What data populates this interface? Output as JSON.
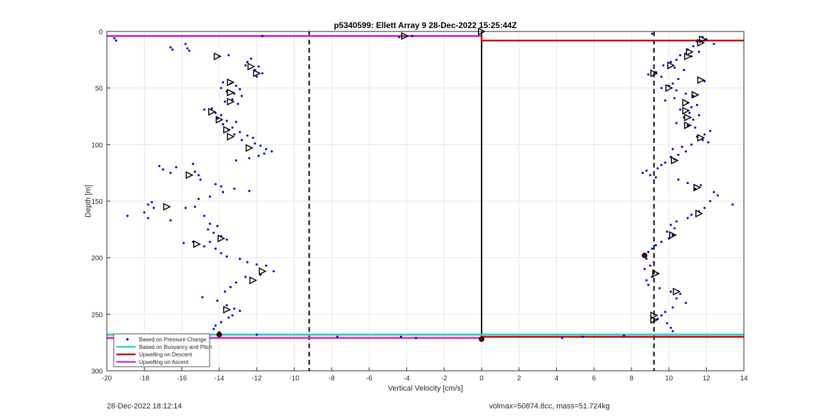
{
  "chart_data": {
    "type": "scatter",
    "title": "p5340599: Ellett Array 9 28-Dec-2022 15:25:44Z",
    "xlabel": "Vertical Velocity [cm/s]",
    "ylabel": "Depth [m]",
    "xlim": [
      -20,
      14
    ],
    "ylim": [
      0,
      300
    ],
    "y_reversed": true,
    "grid": true,
    "xticks": [
      -20,
      -18,
      -16,
      -14,
      -12,
      -10,
      -8,
      -6,
      -4,
      -2,
      0,
      2,
      4,
      6,
      8,
      10,
      12,
      14
    ],
    "yticks": [
      0,
      50,
      100,
      150,
      200,
      250,
      300
    ],
    "legend_position": "bottom-left",
    "legend": [
      {
        "label": "Based on Pressure Change",
        "color": "#0000cc",
        "style": "dot"
      },
      {
        "label": "Based on Buoyancy and Pitch",
        "color": "#33cccc",
        "style": "line"
      },
      {
        "label": "Upwelling on Descent",
        "color": "#cc0000",
        "style": "line"
      },
      {
        "label": "Upwelling on Ascent",
        "color": "#cc33cc",
        "style": "line"
      }
    ],
    "dashed_lines_x": [
      -9.2,
      9.2
    ],
    "zero_line_x": 0,
    "pressure_points_left": [
      [
        -19.6,
        6
      ],
      [
        -19.5,
        8
      ],
      [
        -16.6,
        14
      ],
      [
        -16.5,
        16
      ],
      [
        -15.8,
        11
      ],
      [
        -15.7,
        15
      ],
      [
        -15.6,
        17
      ],
      [
        -14.0,
        22
      ],
      [
        -13.5,
        21
      ],
      [
        -12.3,
        24
      ],
      [
        -12.5,
        27
      ],
      [
        -12.6,
        30
      ],
      [
        -11.9,
        31
      ],
      [
        -12.1,
        34
      ],
      [
        -11.7,
        37
      ],
      [
        -12.0,
        40
      ],
      [
        -13.8,
        45
      ],
      [
        -13.4,
        46
      ],
      [
        -13.1,
        48
      ],
      [
        -13.9,
        50
      ],
      [
        -12.9,
        51
      ],
      [
        -13.6,
        53
      ],
      [
        -13.2,
        55
      ],
      [
        -12.8,
        57
      ],
      [
        -13.3,
        60
      ],
      [
        -13.7,
        62
      ],
      [
        -13.0,
        64
      ],
      [
        -14.4,
        68
      ],
      [
        -14.8,
        69
      ],
      [
        -14.2,
        72
      ],
      [
        -13.9,
        74
      ],
      [
        -14.1,
        77
      ],
      [
        -13.6,
        79
      ],
      [
        -13.1,
        80
      ],
      [
        -13.8,
        82
      ],
      [
        -13.3,
        85
      ],
      [
        -13.5,
        87
      ],
      [
        -12.9,
        89
      ],
      [
        -13.2,
        91
      ],
      [
        -12.5,
        92
      ],
      [
        -12.2,
        94
      ],
      [
        -12.8,
        96
      ],
      [
        -12.1,
        99
      ],
      [
        -11.8,
        101
      ],
      [
        -11.5,
        104
      ],
      [
        -11.2,
        106
      ],
      [
        -11.6,
        108
      ],
      [
        -11.9,
        110
      ],
      [
        -12.4,
        112
      ],
      [
        -13.1,
        114
      ],
      [
        -15.4,
        117
      ],
      [
        -16.3,
        120
      ],
      [
        -17.2,
        119
      ],
      [
        -17.0,
        122
      ],
      [
        -16.6,
        125
      ],
      [
        -15.3,
        124
      ],
      [
        -15.1,
        127
      ],
      [
        -15.0,
        131
      ],
      [
        -14.2,
        135
      ],
      [
        -13.9,
        137
      ],
      [
        -13.2,
        139
      ],
      [
        -13.8,
        142
      ],
      [
        -12.4,
        141
      ],
      [
        -14.5,
        146
      ],
      [
        -15.1,
        148
      ],
      [
        -17.6,
        151
      ],
      [
        -17.8,
        153
      ],
      [
        -17.5,
        156
      ],
      [
        -18.0,
        160
      ],
      [
        -18.9,
        163
      ],
      [
        -17.8,
        165
      ],
      [
        -16.6,
        167
      ],
      [
        -15.8,
        156
      ],
      [
        -15.3,
        155
      ],
      [
        -14.8,
        163
      ],
      [
        -14.5,
        170
      ],
      [
        -14.1,
        172
      ],
      [
        -14.6,
        175
      ],
      [
        -14.3,
        178
      ],
      [
        -13.9,
        181
      ],
      [
        -13.6,
        184
      ],
      [
        -14.5,
        186
      ],
      [
        -15.4,
        186
      ],
      [
        -15.9,
        187
      ],
      [
        -14.8,
        190
      ],
      [
        -14.2,
        192
      ],
      [
        -13.9,
        196
      ],
      [
        -13.6,
        199
      ],
      [
        -12.9,
        201
      ],
      [
        -12.5,
        204
      ],
      [
        -12.0,
        206
      ],
      [
        -11.5,
        207
      ],
      [
        -11.1,
        212
      ],
      [
        -11.8,
        215
      ],
      [
        -12.6,
        217
      ],
      [
        -13.1,
        222
      ],
      [
        -13.4,
        226
      ],
      [
        -13.7,
        230
      ],
      [
        -14.9,
        235
      ],
      [
        -14.1,
        238
      ],
      [
        -13.6,
        242
      ],
      [
        -13.2,
        245
      ],
      [
        -12.9,
        247
      ],
      [
        -13.3,
        251
      ],
      [
        -13.5,
        253
      ],
      [
        -13.9,
        257
      ],
      [
        -14.2,
        260
      ],
      [
        -14.3,
        263
      ],
      [
        -14.0,
        266
      ],
      [
        -12.0,
        268
      ],
      [
        -7.7,
        270
      ],
      [
        -4.3,
        270
      ],
      [
        -3.5,
        271
      ],
      [
        -4.4,
        5
      ],
      [
        -3.7,
        4
      ],
      [
        -11.7,
        4
      ]
    ],
    "pressure_points_right": [
      [
        9.1,
        2
      ],
      [
        11.8,
        5
      ],
      [
        12.0,
        7
      ],
      [
        11.5,
        9
      ],
      [
        12.4,
        11
      ],
      [
        11.3,
        13
      ],
      [
        11.0,
        16
      ],
      [
        11.6,
        18
      ],
      [
        10.6,
        21
      ],
      [
        11.2,
        22
      ],
      [
        10.4,
        25
      ],
      [
        10.1,
        27
      ],
      [
        9.7,
        30
      ],
      [
        10.3,
        32
      ],
      [
        10.8,
        34
      ],
      [
        9.3,
        36
      ],
      [
        8.9,
        38
      ],
      [
        9.6,
        40
      ],
      [
        10.5,
        42
      ],
      [
        11.9,
        44
      ],
      [
        10.2,
        46
      ],
      [
        10.0,
        48
      ],
      [
        9.6,
        50
      ],
      [
        10.4,
        52
      ],
      [
        10.9,
        55
      ],
      [
        11.3,
        57
      ],
      [
        10.3,
        59
      ],
      [
        9.8,
        61
      ],
      [
        11.0,
        63
      ],
      [
        11.5,
        65
      ],
      [
        11.2,
        67
      ],
      [
        10.6,
        69
      ],
      [
        11.1,
        72
      ],
      [
        11.6,
        74
      ],
      [
        10.8,
        76
      ],
      [
        11.3,
        78
      ],
      [
        10.4,
        81
      ],
      [
        11.0,
        83
      ],
      [
        11.4,
        85
      ],
      [
        12.2,
        88
      ],
      [
        11.9,
        91
      ],
      [
        11.5,
        93
      ],
      [
        11.8,
        96
      ],
      [
        12.1,
        98
      ],
      [
        11.2,
        100
      ],
      [
        10.7,
        102
      ],
      [
        10.2,
        104
      ],
      [
        10.9,
        106
      ],
      [
        10.5,
        109
      ],
      [
        10.1,
        111
      ],
      [
        10.3,
        113
      ],
      [
        9.8,
        116
      ],
      [
        9.6,
        118
      ],
      [
        9.4,
        121
      ],
      [
        8.8,
        123
      ],
      [
        8.6,
        125
      ],
      [
        9.0,
        127
      ],
      [
        9.3,
        129
      ],
      [
        10.5,
        131
      ],
      [
        11.0,
        134
      ],
      [
        11.7,
        136
      ],
      [
        11.4,
        139
      ],
      [
        12.4,
        142
      ],
      [
        12.6,
        145
      ],
      [
        13.4,
        153
      ],
      [
        12.2,
        150
      ],
      [
        11.9,
        156
      ],
      [
        11.6,
        159
      ],
      [
        11.2,
        162
      ],
      [
        11.0,
        165
      ],
      [
        10.4,
        168
      ],
      [
        10.1,
        171
      ],
      [
        10.3,
        174
      ],
      [
        9.9,
        177
      ],
      [
        10.2,
        180
      ],
      [
        10.0,
        183
      ],
      [
        9.6,
        186
      ],
      [
        9.3,
        189
      ],
      [
        9.1,
        192
      ],
      [
        8.9,
        195
      ],
      [
        8.6,
        198
      ],
      [
        8.8,
        201
      ],
      [
        9.2,
        204
      ],
      [
        9.0,
        207
      ],
      [
        8.7,
        210
      ],
      [
        9.4,
        214
      ],
      [
        9.1,
        217
      ],
      [
        8.8,
        220
      ],
      [
        8.9,
        224
      ],
      [
        9.5,
        227
      ],
      [
        10.1,
        230
      ],
      [
        10.6,
        232
      ],
      [
        10.4,
        236
      ],
      [
        10.9,
        240
      ],
      [
        10.2,
        244
      ],
      [
        9.8,
        248
      ],
      [
        9.6,
        251
      ],
      [
        9.4,
        254
      ],
      [
        9.9,
        258
      ],
      [
        10.1,
        262
      ],
      [
        10.2,
        265
      ],
      [
        4.3,
        271
      ],
      [
        5.4,
        270
      ],
      [
        7.6,
        269
      ]
    ],
    "buoyancy_points_descent": [
      [
        -4.1,
        4
      ],
      [
        0,
        0
      ],
      [
        11.8,
        7
      ],
      [
        11.7,
        10
      ],
      [
        11.1,
        18
      ],
      [
        11.0,
        22
      ],
      [
        10.1,
        30
      ],
      [
        9.2,
        37
      ],
      [
        11.7,
        43
      ],
      [
        10.0,
        50
      ],
      [
        11.4,
        56
      ],
      [
        10.9,
        63
      ],
      [
        10.9,
        70
      ],
      [
        11.0,
        76
      ],
      [
        11.0,
        83
      ],
      [
        11.7,
        94
      ],
      [
        10.3,
        114
      ],
      [
        11.5,
        138
      ],
      [
        11.6,
        161
      ],
      [
        10.2,
        180
      ],
      [
        9.3,
        214
      ],
      [
        10.4,
        230
      ],
      [
        9.2,
        255
      ],
      [
        9.2,
        251
      ]
    ],
    "buoyancy_points_ascent": [
      [
        -14.1,
        22
      ],
      [
        -12.3,
        31
      ],
      [
        -12.0,
        37
      ],
      [
        -13.4,
        45
      ],
      [
        -13.4,
        54
      ],
      [
        -13.4,
        62
      ],
      [
        -14.4,
        71
      ],
      [
        -14.0,
        78
      ],
      [
        -13.6,
        87
      ],
      [
        -13.4,
        93
      ],
      [
        -12.4,
        103
      ],
      [
        -15.6,
        127
      ],
      [
        -16.8,
        155
      ],
      [
        -13.9,
        183
      ],
      [
        -15.2,
        188
      ],
      [
        -11.7,
        212
      ],
      [
        -12.2,
        220
      ],
      [
        -13.6,
        246
      ]
    ],
    "stall_markers": [
      [
        -14.0,
        268
      ],
      [
        0,
        272
      ],
      [
        8.7,
        198
      ]
    ],
    "upwelling_descent_segments": [
      [
        [
          0,
          4
        ],
        [
          0,
          8
        ],
        [
          14,
          8
        ]
      ],
      [
        [
          0,
          270
        ],
        [
          14,
          270
        ]
      ]
    ],
    "upwelling_ascent_segments": [
      [
        [
          -20,
          4
        ],
        [
          0,
          4
        ]
      ],
      [
        [
          -20,
          271
        ],
        [
          0,
          271
        ]
      ]
    ],
    "buoyancy_line_y": 268
  },
  "footer": {
    "timestamp": "28-Dec-2022 18:12:14",
    "params": "volmax=50874.8cc, mass=51.724kg"
  }
}
